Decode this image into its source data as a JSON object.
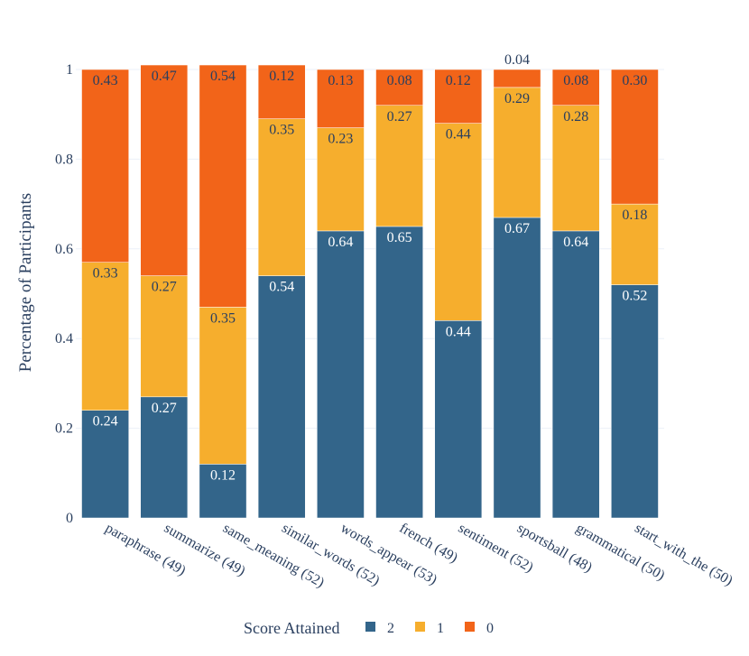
{
  "chart_data": {
    "type": "bar",
    "stacked": true,
    "title": "",
    "xlabel": "",
    "ylabel": "Percentage of Participants",
    "ylim": [
      0,
      1
    ],
    "yticks": [
      0,
      0.2,
      0.4,
      0.6,
      0.8,
      1
    ],
    "ytick_labels": [
      "0",
      "0.2",
      "0.4",
      "0.6",
      "0.8",
      "1"
    ],
    "categories": [
      "paraphrase (49)",
      "summarize (49)",
      "same_meaning (52)",
      "similar_words (52)",
      "words_appear (53)",
      "french (49)",
      "sentiment (52)",
      "sportsball (48)",
      "grammatical (50)",
      "start_with_the (50)"
    ],
    "series": [
      {
        "name": "2",
        "color": "#33658a",
        "label_color": "#ffffff",
        "values": [
          0.24,
          0.27,
          0.12,
          0.54,
          0.64,
          0.65,
          0.44,
          0.67,
          0.64,
          0.52
        ],
        "labels": [
          "0.24",
          "0.27",
          "0.12",
          "0.54",
          "0.64",
          "0.65",
          "0.44",
          "0.67",
          "0.64",
          "0.52"
        ]
      },
      {
        "name": "1",
        "color": "#f6ae2d",
        "label_color": "#2a3f5f",
        "values": [
          0.33,
          0.27,
          0.35,
          0.35,
          0.23,
          0.27,
          0.44,
          0.29,
          0.28,
          0.18
        ],
        "labels": [
          "0.33",
          "0.27",
          "0.35",
          "0.35",
          "0.23",
          "0.27",
          "0.44",
          "0.29",
          "0.28",
          "0.18"
        ]
      },
      {
        "name": "0",
        "color": "#f26419",
        "label_color": "#2a3f5f",
        "values": [
          0.43,
          0.47,
          0.54,
          0.12,
          0.13,
          0.08,
          0.12,
          0.04,
          0.08,
          0.3
        ],
        "labels": [
          "0.43",
          "0.47",
          "0.54",
          "0.12",
          "0.13",
          "0.08",
          "0.12",
          "0.04",
          "0.08",
          "0.30"
        ]
      }
    ],
    "legend": {
      "title": "Score Attained",
      "position": "bottom-center",
      "orientation": "horizontal"
    },
    "grid": true
  }
}
